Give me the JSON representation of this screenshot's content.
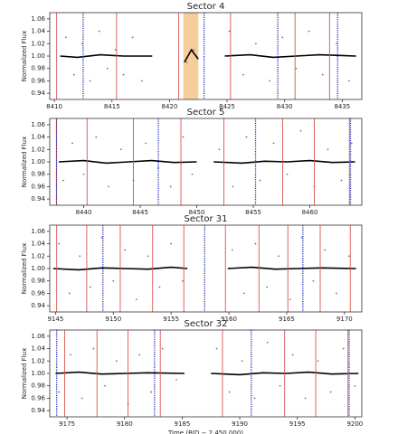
{
  "chart_data": [
    {
      "type": "scatter",
      "title": "Sector 4",
      "ylabel": "Normalized Flux",
      "xlim": [
        8409.6,
        8436.7
      ],
      "xticks": [
        8410,
        8415,
        8420,
        8425,
        8430,
        8435
      ],
      "ylim": [
        0.93,
        1.07
      ],
      "yticks": [
        0.94,
        0.96,
        0.98,
        {
          "value": 1.0,
          "label": "1.00"
        },
        1.02,
        1.04,
        1.06
      ],
      "shaded": {
        "x": [
          8421.2,
          8422.5
        ],
        "color": "#f6c48a"
      },
      "vlines": [
        {
          "color": "#d9534f",
          "style": "solid",
          "x": [
            8410.2,
            8415.4,
            8420.8,
            8425.3,
            8430.9,
            8433.9
          ]
        },
        {
          "color": "#2233bb",
          "style": "dotted",
          "x": [
            8412.5,
            8423.0,
            8429.4,
            8434.6
          ]
        }
      ],
      "series": [
        {
          "color": "#777777",
          "style": "dots",
          "x": [
            8411,
            8411.7,
            8412.4,
            8413.1,
            8413.9,
            8414.6,
            8415.3,
            8416,
            8416.8,
            8417.6,
            8421.5,
            8422.1,
            8425.2,
            8426.4,
            8427.5,
            8428.7,
            8429.8,
            8431,
            8432.1,
            8433.3,
            8434.5,
            8435.6
          ],
          "y": [
            1.03,
            0.97,
            1.02,
            0.96,
            1.04,
            0.98,
            1.01,
            0.97,
            1.03,
            0.96,
            0.99,
            1.01,
            1.04,
            0.97,
            1.02,
            0.96,
            1.03,
            0.98,
            1.04,
            0.97,
            1.02,
            0.96
          ]
        },
        {
          "color": "#000000",
          "style": "line",
          "x": [
            8410.5,
            8412,
            8414,
            8416,
            8418.5,
            8420,
            8421.3,
            8421.9,
            8422.5,
            8423.5,
            8424.8,
            8427,
            8429,
            8431,
            8433,
            8436.2
          ],
          "y": [
            1.0,
            0.998,
            1.002,
            1.0,
            1.0,
            null,
            0.99,
            1.01,
            0.995,
            null,
            1.0,
            1.002,
            0.998,
            1.0,
            1.002,
            1.0
          ]
        }
      ]
    },
    {
      "type": "scatter",
      "title": "Sector 5",
      "ylabel": "Normalized Flux",
      "xlim": [
        8437.0,
        8464.6
      ],
      "xticks": [
        8440,
        8445,
        8450,
        8455,
        8460
      ],
      "ylim": [
        0.93,
        1.07
      ],
      "yticks": [
        0.94,
        0.96,
        0.98,
        {
          "value": 1.0,
          "label": "1.00"
        },
        1.02,
        1.04,
        1.06
      ],
      "vlines": [
        {
          "color": "#d9534f",
          "style": "solid",
          "x": [
            8437.6,
            8440.3,
            8444.4,
            8448.6,
            8452.4,
            8457.6,
            8460.4,
            8463.5
          ]
        },
        {
          "color": "#2233bb",
          "style": "dotted",
          "x": [
            8437.6,
            8446.6,
            8455.2,
            8463.6
          ]
        }
      ],
      "series": [
        {
          "color": "#777777",
          "style": "dots",
          "x": [
            8438.2,
            8439,
            8440,
            8441.1,
            8442.2,
            8443.3,
            8444.4,
            8445.5,
            8446.6,
            8447.7,
            8448.8,
            8449.6,
            8452,
            8453.2,
            8454.4,
            8455.6,
            8456.8,
            8458,
            8459.2,
            8460.4,
            8461.6,
            8462.8,
            8463.7
          ],
          "y": [
            0.97,
            1.03,
            0.98,
            1.04,
            0.96,
            1.02,
            0.97,
            1.03,
            0.99,
            0.96,
            1.04,
            0.98,
            1.02,
            0.96,
            1.04,
            0.97,
            1.03,
            0.98,
            1.05,
            0.96,
            1.02,
            0.97,
            1.03
          ]
        },
        {
          "color": "#000000",
          "style": "line",
          "x": [
            8437.8,
            8440,
            8442,
            8444,
            8446,
            8448,
            8450,
            8450.8,
            8451.5,
            8454,
            8456,
            8458,
            8460,
            8462,
            8464
          ],
          "y": [
            1.0,
            1.002,
            0.998,
            1.0,
            1.002,
            0.999,
            1.0,
            null,
            1.0,
            0.998,
            1.001,
            1.0,
            1.002,
            0.999,
            1.0
          ]
        }
      ]
    },
    {
      "type": "scatter",
      "title": "Sector 31",
      "ylabel": "Normalized Flux",
      "xlim": [
        9144.5,
        9171.5
      ],
      "xticks": [
        9145,
        9150,
        9155,
        9160,
        9165,
        9170
      ],
      "ylim": [
        0.93,
        1.07
      ],
      "yticks": [
        0.94,
        0.96,
        0.98,
        {
          "value": 1.0,
          "label": "1.00"
        },
        1.02,
        1.04,
        1.06
      ],
      "vlines": [
        {
          "color": "#d9534f",
          "style": "solid",
          "x": [
            9145.1,
            9147.7,
            9150.6,
            9153.4,
            9156.1,
            9159.7,
            9162.6,
            9165.1,
            9167.9,
            9170.5
          ]
        },
        {
          "color": "#2233bb",
          "style": "dotted",
          "x": [
            9149.1,
            9157.9,
            9166.4
          ]
        }
      ],
      "series": [
        {
          "color": "#777777",
          "style": "dots",
          "x": [
            9145.3,
            9146.2,
            9147.1,
            9148,
            9149,
            9150,
            9151,
            9152,
            9153,
            9154,
            9155,
            9156,
            9160.3,
            9161.3,
            9162.3,
            9163.3,
            9164.3,
            9165.3,
            9166.3,
            9167.3,
            9168.3,
            9169.3,
            9170.4
          ],
          "y": [
            1.04,
            0.96,
            1.02,
            0.97,
            1.05,
            0.98,
            1.03,
            0.95,
            1.02,
            0.97,
            1.04,
            0.98,
            1.03,
            0.96,
            1.04,
            0.97,
            1.02,
            0.95,
            1.05,
            0.98,
            1.03,
            0.96,
            1.02
          ]
        },
        {
          "color": "#000000",
          "style": "line",
          "x": [
            9144.8,
            9147,
            9149,
            9151,
            9153,
            9155,
            9156.4,
            9158,
            9159.9,
            9162,
            9164,
            9166,
            9168,
            9171
          ],
          "y": [
            1.0,
            0.998,
            1.001,
            1.0,
            0.999,
            1.002,
            1.0,
            null,
            1.0,
            1.002,
            0.999,
            1.0,
            1.001,
            1.0
          ]
        }
      ]
    },
    {
      "type": "scatter",
      "title": "Sector 32",
      "ylabel": "Normalized Flux",
      "xlabel": "Time (BJD − 2 450 000)",
      "xlim": [
        9173.5,
        9200.6
      ],
      "xticks": [
        9175,
        9180,
        9185,
        9190,
        9195,
        9200
      ],
      "ylim": [
        0.93,
        1.07
      ],
      "yticks": [
        0.94,
        0.96,
        0.98,
        {
          "value": 1.0,
          "label": "1.00"
        },
        1.02,
        1.04,
        1.06
      ],
      "vlines": [
        {
          "color": "#d9534f",
          "style": "solid",
          "x": [
            9174.8,
            9177.6,
            9180.3,
            9183.1,
            9188.5,
            9193.9,
            9196.6,
            9199.4
          ]
        },
        {
          "color": "#2233bb",
          "style": "dotted",
          "x": [
            9174.1,
            9182.6,
            9191.0,
            9199.5
          ]
        }
      ],
      "series": [
        {
          "color": "#777777",
          "style": "dots",
          "x": [
            9174.3,
            9175.3,
            9176.3,
            9177.3,
            9178.3,
            9179.3,
            9180.3,
            9181.3,
            9182.3,
            9183.3,
            9184.5,
            9188,
            9189.1,
            9190.2,
            9191.3,
            9192.4,
            9193.5,
            9194.6,
            9195.7,
            9196.8,
            9197.9,
            9199,
            9200
          ],
          "y": [
            0.97,
            1.03,
            0.96,
            1.04,
            0.98,
            1.02,
            0.95,
            1.03,
            0.97,
            1.04,
            0.99,
            1.04,
            0.97,
            1.02,
            0.96,
            1.05,
            0.98,
            1.03,
            0.96,
            1.02,
            0.97,
            1.04,
            0.98
          ]
        },
        {
          "color": "#000000",
          "style": "line",
          "x": [
            9174,
            9176,
            9178,
            9180,
            9182,
            9185.2,
            9186.3,
            9187.5,
            9190,
            9192,
            9194,
            9196,
            9198,
            9200.3
          ],
          "y": [
            1.0,
            1.002,
            0.999,
            1.0,
            1.001,
            1.0,
            null,
            1.0,
            0.998,
            1.001,
            1.0,
            1.002,
            0.999,
            1.0
          ]
        }
      ]
    }
  ]
}
